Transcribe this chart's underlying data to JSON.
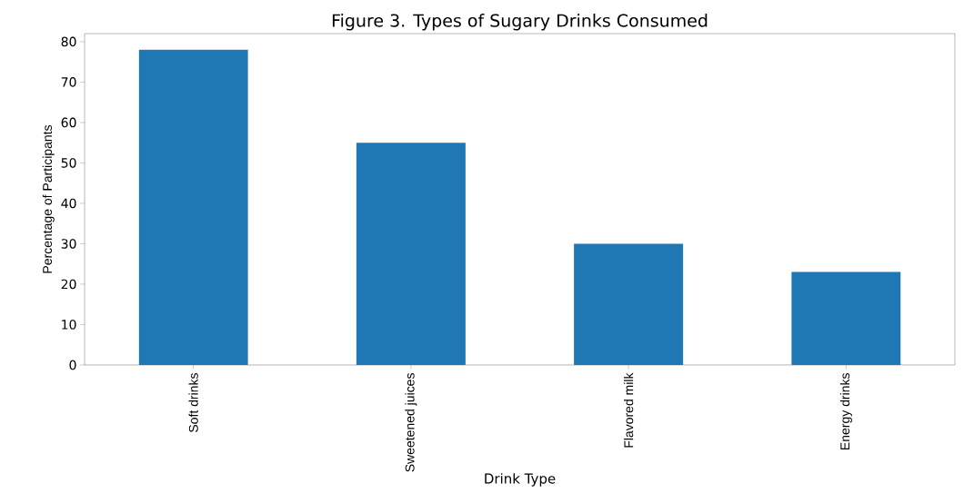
{
  "chart_data": {
    "type": "bar",
    "title": "Figure 3. Types of Sugary Drinks Consumed",
    "xlabel": "Drink Type",
    "ylabel": "Percentage of Participants",
    "categories": [
      "Soft drinks",
      "Sweetened juices",
      "Flavored milk",
      "Energy drinks"
    ],
    "values": [
      78,
      55,
      30,
      23
    ],
    "color": "#1f77b4",
    "ylim": [
      0,
      82
    ],
    "yticks": [
      0,
      10,
      20,
      30,
      40,
      50,
      60,
      70,
      80
    ]
  }
}
